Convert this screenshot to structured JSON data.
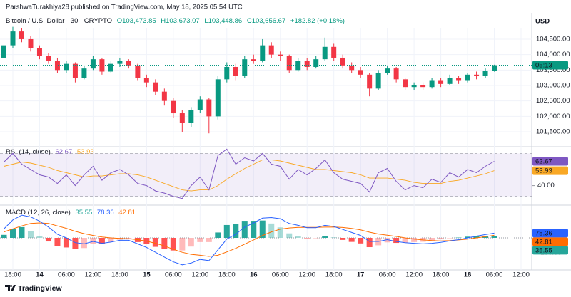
{
  "header": {
    "publisher": "ParshwaTurakhiya28 published on TradingView.com, May 18, 2025 05:54 UTC",
    "currency": "USD"
  },
  "footer": {
    "brand": "TradingView"
  },
  "time_axis": {
    "xlim": [
      -0.44,
      59.2
    ],
    "xticks": [
      {
        "value": 1,
        "label": "18:00"
      },
      {
        "value": 4,
        "label": "14"
      },
      {
        "value": 7,
        "label": "06:00"
      },
      {
        "value": 10,
        "label": "12:00"
      },
      {
        "value": 13,
        "label": "18:00"
      },
      {
        "value": 16,
        "label": "15"
      },
      {
        "value": 19,
        "label": "06:00"
      },
      {
        "value": 22,
        "label": "12:00"
      },
      {
        "value": 25,
        "label": "18:00"
      },
      {
        "value": 28,
        "label": "16"
      },
      {
        "value": 31,
        "label": "06:00"
      },
      {
        "value": 34,
        "label": "12:00"
      },
      {
        "value": 37,
        "label": "18:00"
      },
      {
        "value": 40,
        "label": "17"
      },
      {
        "value": 43,
        "label": "06:00"
      },
      {
        "value": 46,
        "label": "12:00"
      },
      {
        "value": 49,
        "label": "18:00"
      },
      {
        "value": 52,
        "label": "18"
      },
      {
        "value": 55,
        "label": "06:00"
      },
      {
        "value": 58,
        "label": "12:00"
      }
    ]
  },
  "chart_data": [
    {
      "type": "candlestick",
      "title": "Bitcoin / U.S. Dollar · 30 · CRYPTO",
      "ohlc_labels": [
        "O103,473.85",
        "H103,673.07",
        "L103,448.86",
        "C103,656.67"
      ],
      "change_label": "+182.82 (+0.18%)",
      "countdown": "05:13",
      "up_color": "#089981",
      "down_color": "#f23645",
      "open": [
        103900,
        104300,
        104750,
        104500,
        104200,
        103950,
        103800,
        103500,
        103700,
        103250,
        103550,
        103850,
        103450,
        103700,
        103800,
        103650,
        103250,
        103100,
        102800,
        102500,
        102100,
        101800,
        102200,
        102550,
        102000,
        103200,
        103600,
        103300,
        103850,
        103800,
        104300,
        104000,
        103950,
        103500,
        103800,
        103600,
        103850,
        104250,
        103900,
        103650,
        103500,
        103350,
        102900,
        103400,
        103550,
        103200,
        102950,
        103000,
        102950,
        103150,
        103050,
        103250,
        103150,
        103350,
        103300,
        103473.85
      ],
      "high": [
        104400,
        104900,
        104850,
        104600,
        104300,
        104050,
        103900,
        103800,
        103750,
        103650,
        103950,
        103900,
        103800,
        103900,
        103850,
        103700,
        103350,
        103200,
        102900,
        102600,
        102200,
        102300,
        102650,
        102600,
        103300,
        103750,
        103700,
        103950,
        104000,
        104500,
        104400,
        104100,
        104000,
        103900,
        103900,
        103950,
        104550,
        104350,
        104000,
        103750,
        103600,
        103400,
        103500,
        103650,
        103600,
        103250,
        103100,
        103100,
        103250,
        103250,
        103350,
        103300,
        103400,
        103450,
        103550,
        103673.07
      ],
      "low": [
        103850,
        104200,
        104400,
        104100,
        103850,
        103700,
        103400,
        103400,
        103100,
        103200,
        103500,
        103350,
        103400,
        103600,
        103550,
        103150,
        102950,
        102700,
        102350,
        101950,
        101500,
        101650,
        102100,
        101450,
        101900,
        103100,
        103150,
        103250,
        103700,
        103750,
        103900,
        103800,
        103400,
        103450,
        103500,
        103550,
        103800,
        103800,
        103550,
        103400,
        103250,
        102650,
        102850,
        103350,
        103100,
        102850,
        102850,
        102850,
        102900,
        102950,
        103000,
        103050,
        103100,
        103200,
        103250,
        103448.86
      ],
      "close": [
        104300,
        104750,
        104500,
        104200,
        103950,
        103800,
        103500,
        103700,
        103250,
        103550,
        103850,
        103450,
        103700,
        103800,
        103650,
        103250,
        103100,
        102800,
        102500,
        102100,
        101800,
        102200,
        102550,
        102000,
        103200,
        103600,
        103300,
        103850,
        103800,
        104300,
        104000,
        103950,
        103500,
        103800,
        103600,
        103850,
        104250,
        103900,
        103650,
        103500,
        103350,
        102900,
        103400,
        103550,
        103200,
        102950,
        103000,
        102950,
        103150,
        103050,
        103250,
        103150,
        103350,
        103300,
        103473.85,
        103656.67
      ],
      "ylim": [
        101040,
        105260
      ],
      "yticks": [
        {
          "value": 101500,
          "label": "101,500.00"
        },
        {
          "value": 102000,
          "label": "102,000.00"
        },
        {
          "value": 102500,
          "label": "102,500.00"
        },
        {
          "value": 103000,
          "label": "103,000.00"
        },
        {
          "value": 103500,
          "label": "103,500.00"
        },
        {
          "value": 104000,
          "label": "104,000.00"
        },
        {
          "value": 104500,
          "label": "104,500.00"
        }
      ],
      "grid": true
    },
    {
      "type": "line",
      "title": "RSI (14, close)",
      "rsi": {
        "color": "#7e57c2",
        "values": [
          62,
          70,
          60,
          55,
          50,
          48,
          42,
          50,
          40,
          50,
          58,
          45,
          52,
          55,
          50,
          42,
          40,
          35,
          33,
          30,
          28,
          40,
          48,
          36,
          68,
          74,
          60,
          66,
          63,
          70,
          60,
          58,
          46,
          55,
          50,
          56,
          64,
          52,
          46,
          44,
          42,
          34,
          52,
          56,
          44,
          36,
          40,
          38,
          46,
          43,
          52,
          48,
          55,
          52,
          58,
          62.67
        ]
      },
      "ma": {
        "color": "#f9a825",
        "values": [
          58,
          60,
          62,
          61,
          59,
          57,
          54,
          52,
          50,
          48,
          49,
          49,
          50,
          51,
          51,
          50,
          48,
          45,
          42,
          39,
          36,
          35,
          36,
          36,
          40,
          46,
          51,
          56,
          60,
          64,
          64,
          63,
          61,
          59,
          57,
          55,
          55,
          54,
          53,
          52,
          50,
          47,
          47,
          47,
          46,
          45,
          43,
          42,
          42,
          42,
          44,
          45,
          47,
          49,
          51,
          53.93
        ]
      },
      "band": [
        30,
        70
      ],
      "band_color": "#7e57c2",
      "ylim": [
        23.8,
        75.6
      ],
      "yticks": [
        {
          "value": 40,
          "label": "40.00"
        }
      ]
    },
    {
      "type": "macd",
      "title": "MACD (12, 26, close)",
      "histogram": {
        "color": "#26a69a",
        "neg_color": "#ff5252",
        "values": [
          50,
          150,
          180,
          110,
          30,
          -60,
          -140,
          -160,
          -190,
          -170,
          -100,
          -105,
          -70,
          -30,
          -25,
          -70,
          -105,
          -150,
          -185,
          -210,
          -210,
          -145,
          -70,
          -70,
          90,
          215,
          235,
          285,
          285,
          290,
          240,
          175,
          75,
          35,
          -5,
          -5,
          30,
          8,
          -34,
          -67,
          -93,
          -155,
          -124,
          -75,
          -84,
          -80,
          -70,
          -65,
          -45,
          -25,
          -5,
          5,
          20,
          30,
          33,
          35.55
        ]
      },
      "macd": {
        "color": "#2962ff",
        "values": [
          150,
          300,
          380,
          350,
          280,
          180,
          60,
          0,
          -80,
          -100,
          -60,
          -90,
          -70,
          -40,
          -40,
          -100,
          -160,
          -240,
          -320,
          -400,
          -450,
          -420,
          -360,
          -380,
          -200,
          -20,
          60,
          180,
          250,
          330,
          340,
          320,
          240,
          210,
          170,
          170,
          210,
          190,
          140,
          90,
          40,
          -60,
          -60,
          -30,
          -60,
          -80,
          -90,
          -100,
          -90,
          -75,
          -50,
          -30,
          0,
          30,
          55,
          78.36
        ]
      },
      "signal": {
        "color": "#ff6d00",
        "values": [
          100,
          150,
          200,
          240,
          250,
          240,
          200,
          160,
          110,
          70,
          40,
          15,
          0,
          -10,
          -15,
          -30,
          -55,
          -90,
          -135,
          -190,
          -240,
          -275,
          -290,
          -310,
          -290,
          -235,
          -175,
          -105,
          -35,
          40,
          100,
          145,
          165,
          175,
          175,
          175,
          180,
          182,
          174,
          157,
          133,
          95,
          64,
          45,
          24,
          0,
          -20,
          -35,
          -45,
          -50,
          -45,
          -35,
          -20,
          0,
          22,
          42.81
        ]
      },
      "ylim": [
        -524,
        524
      ],
      "yticks": [
        {
          "value": -250,
          "label": "−250.00"
        }
      ]
    }
  ]
}
